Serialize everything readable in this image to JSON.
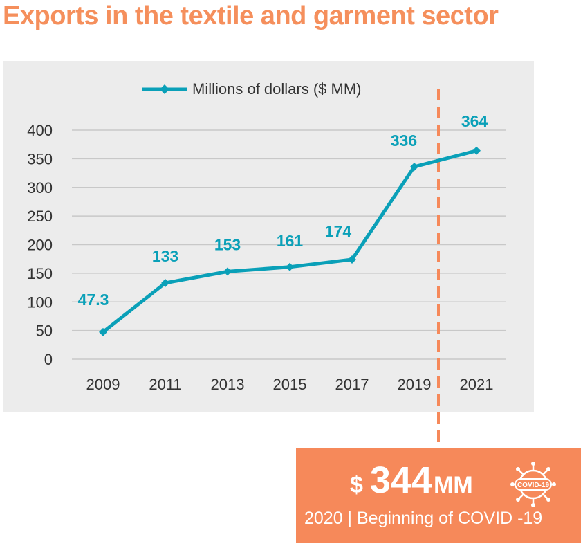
{
  "title": "Exports in the textile and garment sector",
  "colors": {
    "title": "#f58f5c",
    "series": "#0aa0b8",
    "callout": "#f6895a",
    "marker_line": "#f6895a"
  },
  "chart_data": {
    "type": "line",
    "legend": "top-center",
    "grid": true,
    "x": [
      "2009",
      "2011",
      "2013",
      "2015",
      "2017",
      "2019",
      "2021"
    ],
    "yticks": [
      "0",
      "50",
      "100",
      "150",
      "200",
      "250",
      "300",
      "350",
      "400"
    ],
    "ylim": [
      0,
      400
    ],
    "series": [
      {
        "name": "Millions of dollars ($ MM)",
        "values": [
          47.3,
          133,
          153,
          161,
          174,
          336,
          364
        ],
        "labels": [
          "47.3",
          "133",
          "153",
          "161",
          "174",
          "336",
          "364"
        ]
      }
    ]
  },
  "callout": {
    "currency": "$",
    "value": "344",
    "unit": "MM",
    "caption": "2020 | Beginning of COVID -19",
    "icon": "covid-virus-icon",
    "icon_text": "COVID-19"
  }
}
